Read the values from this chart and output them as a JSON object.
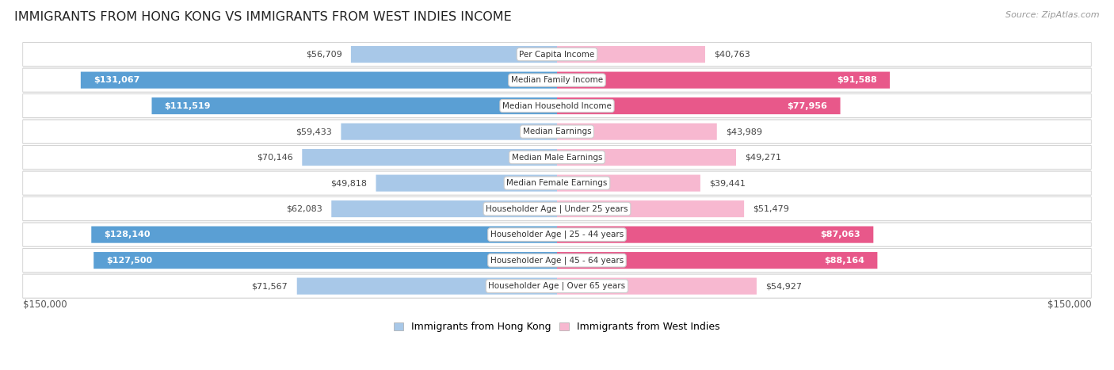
{
  "title": "IMMIGRANTS FROM HONG KONG VS IMMIGRANTS FROM WEST INDIES INCOME",
  "source": "Source: ZipAtlas.com",
  "categories": [
    "Per Capita Income",
    "Median Family Income",
    "Median Household Income",
    "Median Earnings",
    "Median Male Earnings",
    "Median Female Earnings",
    "Householder Age | Under 25 years",
    "Householder Age | 25 - 44 years",
    "Householder Age | 45 - 64 years",
    "Householder Age | Over 65 years"
  ],
  "hk_values": [
    56709,
    131067,
    111519,
    59433,
    70146,
    49818,
    62083,
    128140,
    127500,
    71567
  ],
  "wi_values": [
    40763,
    91588,
    77956,
    43989,
    49271,
    39441,
    51479,
    87063,
    88164,
    54927
  ],
  "hk_color_light": "#a8c8e8",
  "hk_color_dark": "#5a9fd4",
  "wi_color_light": "#f7b8d0",
  "wi_color_dark": "#e8588a",
  "hk_label": "Immigrants from Hong Kong",
  "wi_label": "Immigrants from West Indies",
  "max_val": 150000,
  "background_color": "#ffffff",
  "row_bg": "#f7f7f7",
  "row_border": "#dddddd",
  "axis_label_left": "$150,000",
  "axis_label_right": "$150,000",
  "fill_threshold_hk": 95000,
  "fill_threshold_wi": 75000
}
